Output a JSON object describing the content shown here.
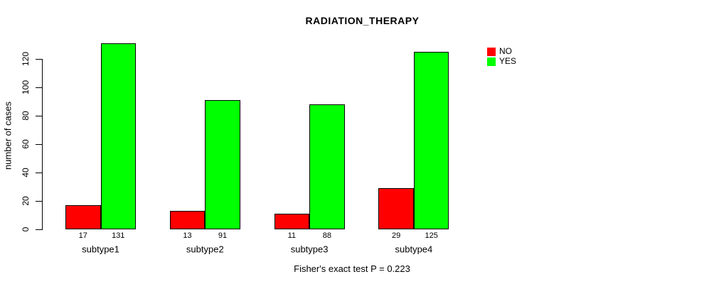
{
  "chart_data": {
    "type": "bar",
    "title": "RADIATION_THERAPY",
    "categories": [
      "subtype1",
      "subtype2",
      "subtype3",
      "subtype4"
    ],
    "series": [
      {
        "name": "NO",
        "color": "#ff0000",
        "values": [
          17,
          13,
          11,
          29
        ]
      },
      {
        "name": "YES",
        "color": "#00ff00",
        "values": [
          131,
          91,
          88,
          125
        ]
      }
    ],
    "xlabel": "",
    "ylabel": "number of cases",
    "ylim": [
      0,
      131
    ],
    "yticks": [
      0,
      20,
      40,
      60,
      80,
      100,
      120
    ],
    "show_bar_values": true,
    "grid": false,
    "legend_position": "outside-top-right",
    "annotation": "Fisher's exact test P = 0.223",
    "colors": {
      "no": "#ff0000",
      "yes": "#00ff00",
      "axis": "#000000",
      "background": "#ffffff"
    }
  }
}
